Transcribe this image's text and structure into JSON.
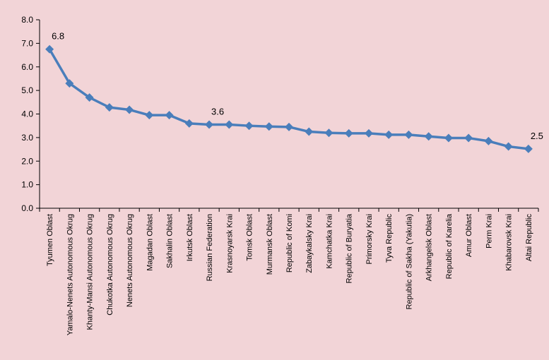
{
  "chart_data": {
    "type": "line",
    "title": "",
    "xlabel": "",
    "ylabel": "",
    "ylim": [
      0,
      8
    ],
    "yticks": [
      "0.0",
      "1.0",
      "2.0",
      "3.0",
      "4.0",
      "5.0",
      "6.0",
      "7.0",
      "8.0"
    ],
    "grid": false,
    "legend": "none",
    "categories": [
      "Tyumen Oblast",
      "Yamalo-Nenets Autonomous Okrug",
      "Khanty-Mansi Autonomous Okrug",
      "Chukotka Autonomous Okrug",
      "Nenets Autonomous Okrug",
      "Magadan Oblast",
      "Sakhalin Oblast",
      "Irkutsk Oblast",
      "Russian Federation",
      "Krasnoyarsk Krai",
      "Tomsk Oblast",
      "Murmansk Oblast",
      "Republic of Komi",
      "Zabaykalsky Krai",
      "Kamchatka Krai",
      "Republic of Buryatia",
      "Primorsky Krai",
      "Tyva Republic",
      "Republic of Sakha (Yakutia)",
      "Arkhangelsk Oblast",
      "Republic of Karelia",
      "Amur Oblast",
      "Perm Krai",
      "Khabarovsk Krai",
      "Altai Republic"
    ],
    "series": [
      {
        "values": [
          6.75,
          5.3,
          4.7,
          4.28,
          4.18,
          3.95,
          3.95,
          3.6,
          3.55,
          3.55,
          3.5,
          3.47,
          3.45,
          3.25,
          3.2,
          3.18,
          3.18,
          3.12,
          3.12,
          3.05,
          2.98,
          2.98,
          2.85,
          2.62,
          2.52
        ]
      }
    ],
    "data_labels": [
      {
        "index": 0,
        "text": "6.8"
      },
      {
        "index": 8,
        "text": "3.6"
      },
      {
        "index": 24,
        "text": "2.5"
      }
    ],
    "colors": {
      "line": "#4a7ebb",
      "background": "#f2d4d7"
    }
  }
}
